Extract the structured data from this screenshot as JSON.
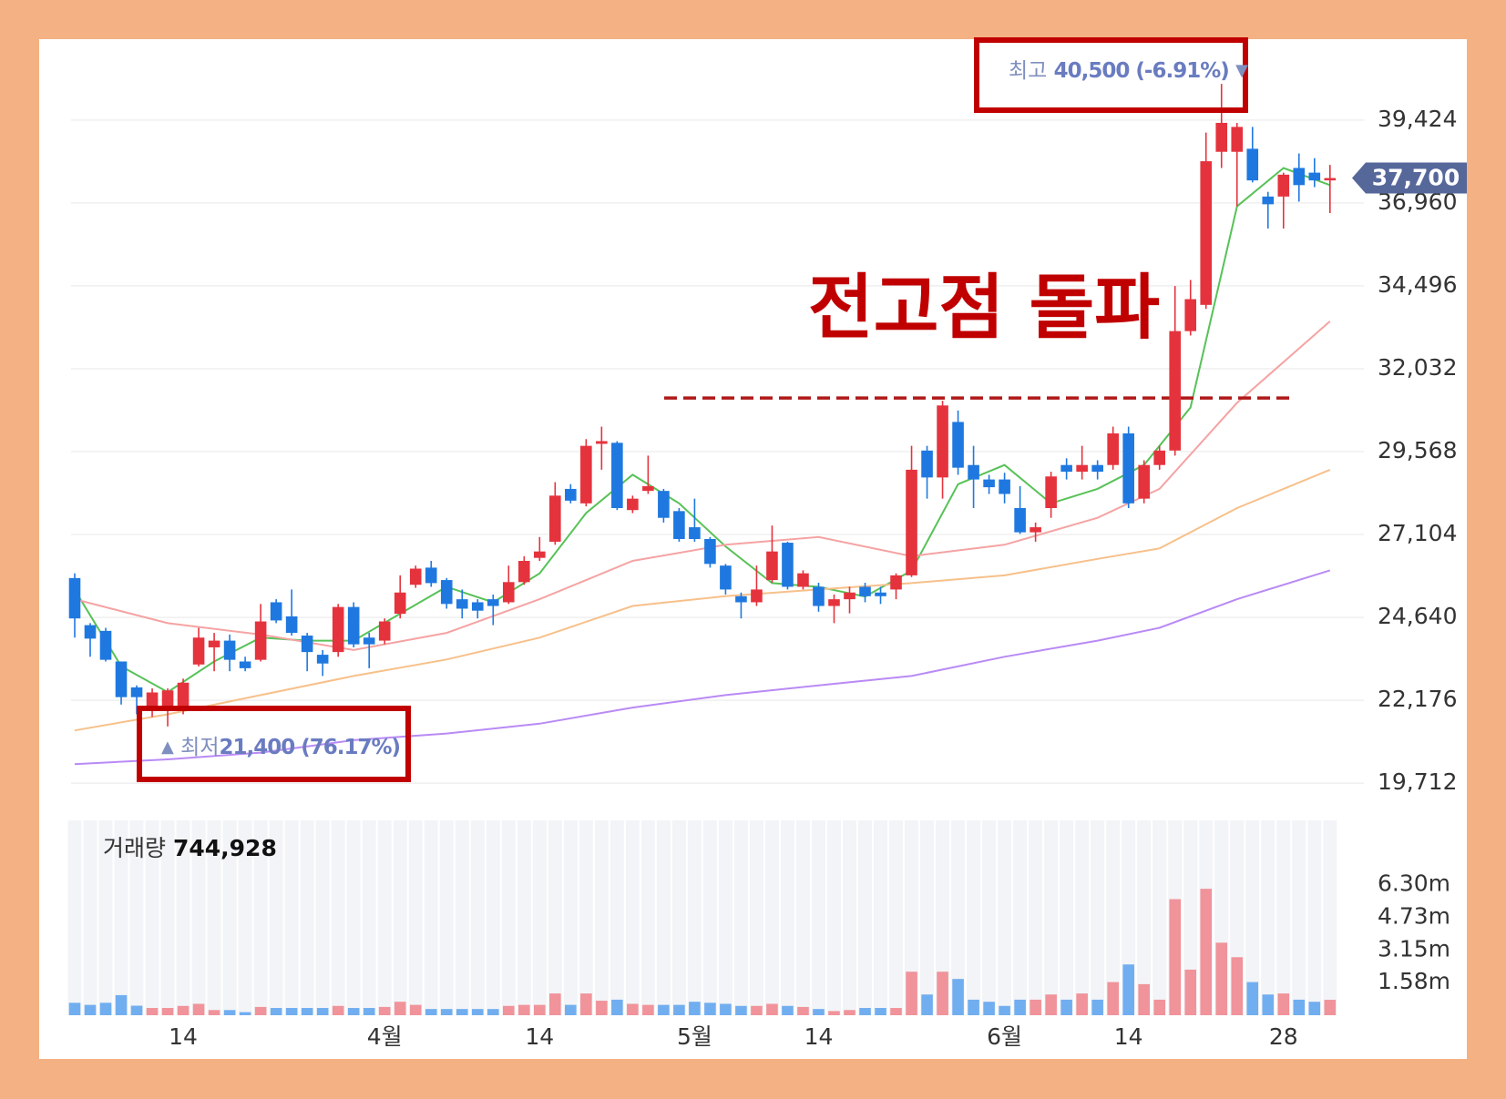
{
  "chart_data": {
    "type": "candlestick",
    "categories": [
      null,
      null,
      null,
      null,
      null,
      null,
      null,
      "14",
      null,
      null,
      null,
      null,
      null,
      null,
      null,
      null,
      null,
      null,
      null,
      null,
      "4월",
      null,
      null,
      null,
      null,
      null,
      null,
      null,
      null,
      null,
      "14",
      null,
      null,
      null,
      null,
      null,
      null,
      null,
      null,
      null,
      "5월",
      null,
      null,
      null,
      null,
      null,
      null,
      null,
      "14",
      null,
      null,
      null,
      null,
      null,
      null,
      null,
      null,
      null,
      null,
      null,
      "6월",
      null,
      null,
      null,
      null,
      null,
      null,
      null,
      "14",
      null,
      null,
      null,
      null,
      null,
      null,
      null,
      null,
      null,
      "28",
      null,
      null,
      null
    ],
    "open": [
      25810,
      24410,
      24240,
      23330,
      22560,
      21900,
      21900,
      21900,
      23240,
      23750,
      23950,
      23330,
      23380,
      25090,
      24670,
      24100,
      23530,
      23610,
      24950,
      24040,
      23950,
      24750,
      25610,
      26120,
      25750,
      25180,
      25090,
      25180,
      25090,
      25690,
      26410,
      26890,
      28460,
      28030,
      29800,
      29830,
      27830,
      28400,
      28400,
      27800,
      27320,
      26970,
      26180,
      25270,
      25090,
      25750,
      26860,
      25550,
      25550,
      24980,
      25180,
      25550,
      25380,
      25470,
      25890,
      29600,
      28800,
      30450,
      29170,
      28740,
      28740,
      27890,
      27170,
      27890,
      29170,
      28970,
      29170,
      29170,
      30110,
      28170,
      29170,
      29600,
      33150,
      33930,
      38480,
      38480,
      38570,
      37150,
      37150,
      38000,
      37860,
      37630
    ],
    "high": [
      25950,
      24470,
      24330,
      23330,
      22620,
      22530,
      22530,
      22820,
      24330,
      24180,
      24130,
      23470,
      25040,
      25180,
      25470,
      24180,
      23670,
      25040,
      25090,
      24180,
      24610,
      25890,
      26180,
      26320,
      25810,
      25470,
      25180,
      25320,
      26180,
      26460,
      27030,
      28660,
      28600,
      29940,
      30310,
      29880,
      28260,
      29450,
      28460,
      27890,
      28170,
      27030,
      26230,
      25380,
      26180,
      27370,
      26890,
      26040,
      25670,
      25320,
      25550,
      25670,
      25550,
      25950,
      29740,
      29740,
      31080,
      30790,
      29740,
      28880,
      28940,
      28540,
      27460,
      28970,
      29370,
      29740,
      29310,
      30310,
      30310,
      29310,
      29740,
      34490,
      34670,
      39050,
      40500,
      39340,
      39220,
      37290,
      37860,
      38430,
      38290,
      38090
    ],
    "low": [
      24040,
      23470,
      23330,
      22050,
      21760,
      21680,
      21400,
      21760,
      23180,
      23040,
      23040,
      23040,
      23330,
      24470,
      24100,
      23040,
      22900,
      23470,
      23750,
      23130,
      23840,
      24610,
      25520,
      25550,
      24900,
      24610,
      24610,
      24410,
      25040,
      25610,
      26320,
      26800,
      28030,
      27940,
      29030,
      27830,
      27740,
      28310,
      27460,
      26890,
      26890,
      26120,
      25320,
      24610,
      24980,
      25670,
      25470,
      25470,
      24810,
      24470,
      24760,
      25090,
      25040,
      25180,
      25840,
      28170,
      28170,
      28880,
      27890,
      28310,
      28030,
      27120,
      26890,
      27600,
      28740,
      28740,
      28740,
      29030,
      27890,
      28030,
      29030,
      29450,
      33020,
      33810,
      38000,
      36860,
      37570,
      36200,
      36200,
      37000,
      37430,
      36660
    ],
    "close": [
      24610,
      24010,
      23380,
      22270,
      22270,
      22410,
      22470,
      22700,
      24040,
      23950,
      23380,
      23130,
      24520,
      24550,
      24180,
      23610,
      23270,
      24950,
      23840,
      23840,
      24520,
      25380,
      26090,
      25660,
      25040,
      24900,
      24840,
      24980,
      25690,
      26320,
      26600,
      28260,
      28110,
      29740,
      29880,
      27890,
      28170,
      28540,
      27600,
      26970,
      26970,
      26230,
      25470,
      25090,
      25470,
      26600,
      25550,
      25950,
      24980,
      25180,
      25380,
      25270,
      25270,
      25890,
      29030,
      28800,
      30940,
      29090,
      28740,
      28510,
      28310,
      27170,
      27320,
      28830,
      28970,
      29170,
      28970,
      30110,
      28030,
      29170,
      29600,
      33150,
      34100,
      38200,
      39340,
      39220,
      37630,
      36920,
      37800,
      37490,
      37630,
      37700
    ],
    "up_color": "#e5333d",
    "down_color": "#1f78e0",
    "ylim": [
      19500,
      40800
    ],
    "yticks": [
      {
        "value": 19712,
        "label": "19,712"
      },
      {
        "value": 22176,
        "label": "22,176"
      },
      {
        "value": 24640,
        "label": "24,640"
      },
      {
        "value": 27104,
        "label": "27,104"
      },
      {
        "value": 29568,
        "label": "29,568"
      },
      {
        "value": 32032,
        "label": "32,032"
      },
      {
        "value": 34496,
        "label": "34,496"
      },
      {
        "value": 36960,
        "label": "36,960"
      },
      {
        "value": 39424,
        "label": "39,424"
      }
    ],
    "grid": true,
    "lines": [
      {
        "color": "#57c257",
        "x": [
          0,
          3,
          6,
          9,
          12,
          15,
          18,
          21,
          24,
          27,
          30,
          33,
          36,
          39,
          42,
          45,
          48,
          51,
          54,
          57,
          60,
          63,
          66,
          69,
          72,
          75,
          78,
          81
        ],
        "values": [
          25460,
          23190,
          22420,
          23330,
          24040,
          23950,
          23950,
          24750,
          25550,
          25090,
          25950,
          27740,
          28880,
          28030,
          26750,
          25660,
          25550,
          25260,
          26030,
          28600,
          29170,
          28030,
          28460,
          29170,
          30880,
          36860,
          38000,
          37490
        ]
      },
      {
        "color": "#f5a3a3",
        "x": [
          0,
          6,
          12,
          18,
          24,
          30,
          36,
          42,
          48,
          54,
          60,
          66,
          70,
          75,
          81
        ],
        "values": [
          25180,
          24470,
          24130,
          23670,
          24180,
          25180,
          26320,
          26800,
          27030,
          26460,
          26800,
          27600,
          28460,
          31020,
          33440
        ]
      },
      {
        "color": "#f7c08a",
        "x": [
          0,
          6,
          12,
          18,
          24,
          30,
          36,
          42,
          48,
          54,
          60,
          66,
          70,
          75,
          81
        ],
        "values": [
          21280,
          21760,
          22330,
          22900,
          23390,
          24040,
          24980,
          25270,
          25470,
          25660,
          25890,
          26380,
          26690,
          27890,
          29030
        ]
      },
      {
        "color": "#b98af5",
        "x": [
          0,
          6,
          12,
          18,
          24,
          30,
          36,
          42,
          48,
          54,
          60,
          66,
          70,
          75,
          81
        ],
        "values": [
          20280,
          20420,
          20620,
          20990,
          21190,
          21480,
          21960,
          22330,
          22620,
          22900,
          23470,
          23950,
          24330,
          25180,
          26040
        ]
      }
    ],
    "resistance": 31160,
    "current_price": {
      "value": 37700,
      "label": "37,700"
    },
    "annotations": {
      "title": "전고점 돌파",
      "high": {
        "label": "최고",
        "value": "40,500 (-6.91%)",
        "marker": "▼"
      },
      "low": {
        "marker": "▲",
        "label": "최저",
        "value": "21,400 (76.17%)"
      }
    },
    "volume": {
      "label": "거래량",
      "current": "744,928",
      "values": [
        600000,
        500000,
        600000,
        970000,
        460000,
        350000,
        350000,
        450000,
        550000,
        250000,
        250000,
        150000,
        400000,
        350000,
        350000,
        350000,
        350000,
        450000,
        350000,
        350000,
        400000,
        650000,
        500000,
        300000,
        300000,
        300000,
        300000,
        300000,
        450000,
        500000,
        500000,
        1050000,
        500000,
        1050000,
        700000,
        750000,
        550000,
        500000,
        500000,
        500000,
        650000,
        600000,
        550000,
        450000,
        450000,
        550000,
        450000,
        400000,
        300000,
        200000,
        250000,
        350000,
        350000,
        350000,
        2100000,
        1000000,
        2100000,
        1750000,
        750000,
        650000,
        450000,
        750000,
        750000,
        1000000,
        750000,
        1050000,
        750000,
        1600000,
        2450000,
        1500000,
        750000,
        5600000,
        2200000,
        6100000,
        3500000,
        2800000,
        1600000,
        1000000,
        1050000,
        750000,
        650000,
        744928
      ],
      "up_color": "#f0939a",
      "down_color": "#71aef0",
      "ylim": [
        0,
        9400000
      ],
      "yticks": [
        {
          "value": 1580000,
          "label": "1.58m"
        },
        {
          "value": 3150000,
          "label": "3.15m"
        },
        {
          "value": 4730000,
          "label": "4.73m"
        },
        {
          "value": 6300000,
          "label": "6.30m"
        }
      ]
    }
  }
}
